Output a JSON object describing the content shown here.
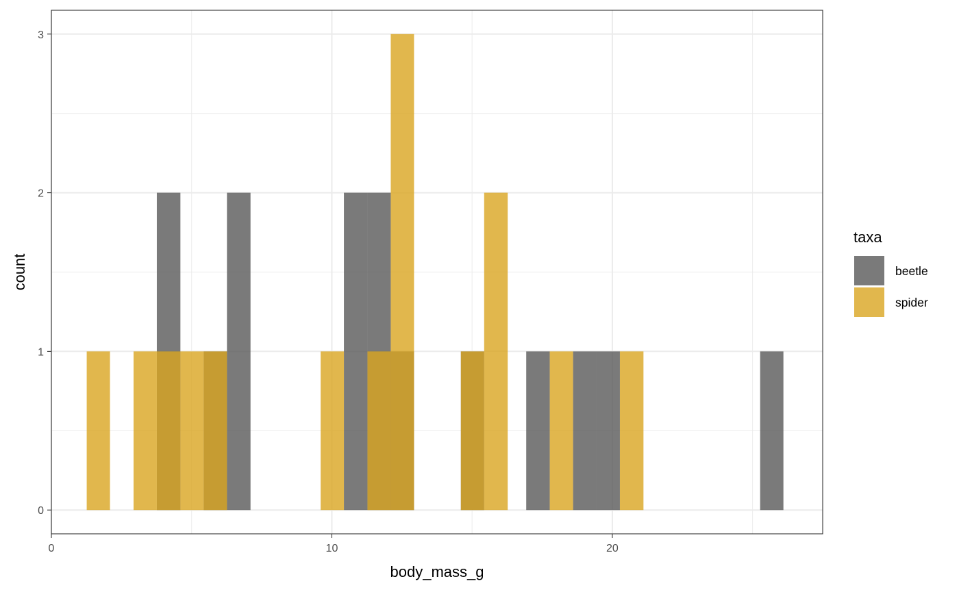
{
  "chart_data": {
    "type": "bar",
    "subtype": "histogram",
    "xlabel": "body_mass_g",
    "ylabel": "count",
    "xlim": [
      0,
      27.5
    ],
    "ylim": [
      -0.15,
      3.15
    ],
    "x_ticks": [
      0,
      10,
      20
    ],
    "x_tick_labels": [
      "0",
      "10",
      "20"
    ],
    "y_ticks": [
      0,
      1,
      2,
      3
    ],
    "y_tick_labels": [
      "0",
      "1",
      "2",
      "3"
    ],
    "grid": true,
    "legend": {
      "title": "taxa",
      "position": "right"
    },
    "bins": [
      [
        1.26,
        2.09
      ],
      [
        2.93,
        3.76
      ],
      [
        3.76,
        4.6
      ],
      [
        4.6,
        5.43
      ],
      [
        5.43,
        6.26
      ],
      [
        6.26,
        7.1
      ],
      [
        9.6,
        10.43
      ],
      [
        10.43,
        11.27
      ],
      [
        11.27,
        12.1
      ],
      [
        12.1,
        12.93
      ],
      [
        14.6,
        15.43
      ],
      [
        15.43,
        16.27
      ],
      [
        16.93,
        17.77
      ],
      [
        17.77,
        18.6
      ],
      [
        18.6,
        19.44
      ],
      [
        19.44,
        20.27
      ],
      [
        20.27,
        21.11
      ],
      [
        25.27,
        26.1
      ]
    ],
    "series": [
      {
        "name": "beetle",
        "color": "#595959",
        "opacity": 0.8,
        "values": [
          0,
          0,
          2,
          0,
          1,
          2,
          0,
          2,
          2,
          1,
          1,
          0,
          1,
          0,
          1,
          1,
          0,
          1
        ]
      },
      {
        "name": "spider",
        "color": "#DAA520",
        "opacity": 0.8,
        "values": [
          1,
          1,
          1,
          1,
          1,
          0,
          1,
          0,
          1,
          3,
          1,
          2,
          0,
          1,
          0,
          0,
          1,
          0
        ]
      }
    ]
  }
}
